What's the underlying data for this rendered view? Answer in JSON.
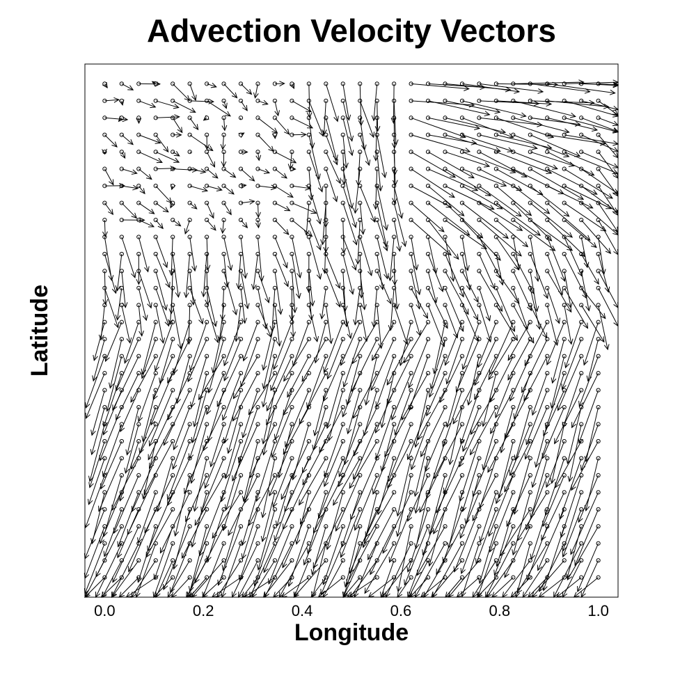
{
  "chart_data": {
    "type": "vector-field",
    "title": "Advection Velocity Vectors",
    "xlabel": "Longitude",
    "ylabel": "Latitude",
    "xlim": [
      -0.04,
      1.04
    ],
    "ylim": [
      -0.04,
      1.04
    ],
    "xticks": [
      {
        "value": 0.0,
        "label": "0.0"
      },
      {
        "value": 0.2,
        "label": "0.2"
      },
      {
        "value": 0.4,
        "label": "0.4"
      },
      {
        "value": 0.6,
        "label": "0.6"
      },
      {
        "value": 0.8,
        "label": "0.8"
      },
      {
        "value": 1.0,
        "label": "1.0"
      }
    ],
    "yticks": [],
    "grid": {
      "x_start": 0.0,
      "x_end": 1.0,
      "nx": 30,
      "y_start": 0.0,
      "y_end": 1.0,
      "ny": 30
    },
    "field": {
      "description": "vectors mostly point down-left across the lower half; weak irregular vectors at the top-left; strong right-pointing vectors at the top-right",
      "colors": {
        "line": "#000000",
        "point_marker": "open-circle"
      }
    },
    "grid_lines": false,
    "legend": "none"
  }
}
